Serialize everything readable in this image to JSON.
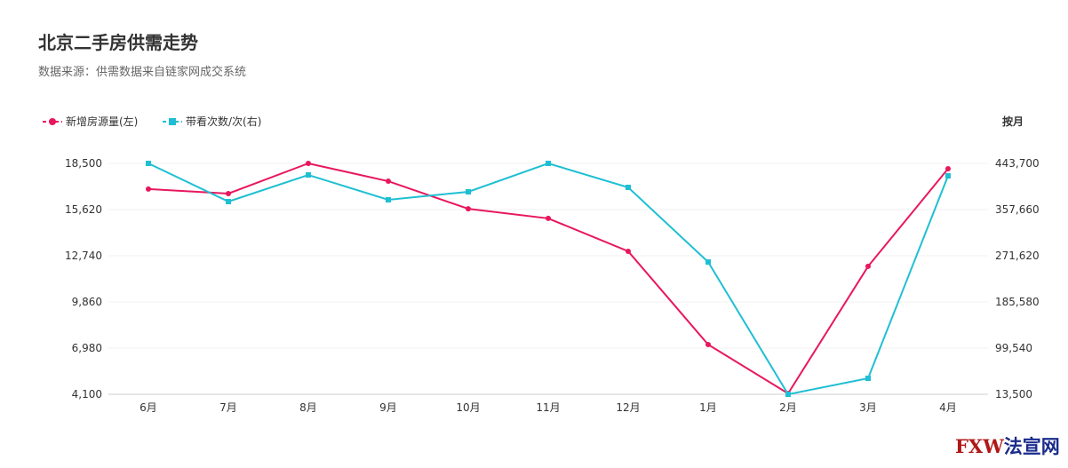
{
  "title": "北京二手房供需走势",
  "subtitle": "数据来源：供需数据来自链家网成交系统",
  "unit_label": "按月",
  "watermark": "FXW法宣网",
  "chart_data": {
    "type": "line",
    "title": "北京二手房供需走势",
    "categories": [
      "6月",
      "7月",
      "8月",
      "9月",
      "10月",
      "11月",
      "12月",
      "1月",
      "2月",
      "3月",
      "4月"
    ],
    "series": [
      {
        "name": "新增房源量(左)",
        "axis": "left",
        "color": "#e8175d",
        "marker": "circle",
        "values": [
          16900,
          16620,
          18500,
          17390,
          15670,
          15070,
          13020,
          7200,
          4150,
          12080,
          18170
        ]
      },
      {
        "name": "带看次数/次(右)",
        "axis": "right",
        "color": "#1fbfd3",
        "marker": "square",
        "values": [
          443700,
          372550,
          422200,
          375850,
          390750,
          443700,
          399000,
          260000,
          13500,
          43300,
          420500
        ]
      }
    ],
    "left_axis": {
      "ticks": [
        "4,100",
        "6,980",
        "9,860",
        "12,740",
        "15,620",
        "18,500"
      ],
      "range": [
        4100,
        18500
      ]
    },
    "right_axis": {
      "ticks": [
        "13,500",
        "99,540",
        "185,580",
        "271,620",
        "357,660",
        "443,700"
      ],
      "range": [
        13500,
        443700
      ]
    },
    "legend": "top-left",
    "grid": true
  }
}
